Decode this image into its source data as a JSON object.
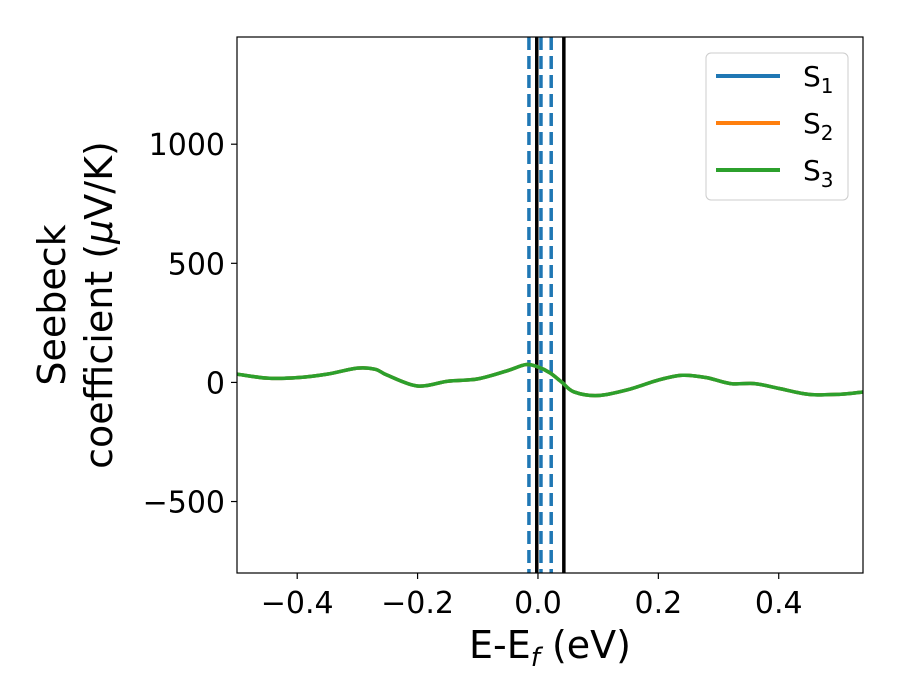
{
  "chart_data": {
    "type": "line",
    "xlabel": "E-E",
    "xlabel_sub": "f",
    "xlabel_unit": " (eV)",
    "ylabel_line1": "Seebeck",
    "ylabel_line2_prefix": "coefficient  (",
    "ylabel_mu": "μ",
    "ylabel_line2_suffix": "V/K)",
    "xlim": [
      -0.5,
      0.54
    ],
    "ylim": [
      -800,
      1450
    ],
    "x_ticks": [
      {
        "value": -0.4,
        "label": "−0.4"
      },
      {
        "value": -0.2,
        "label": "−0.2"
      },
      {
        "value": 0.0,
        "label": "0.0"
      },
      {
        "value": 0.2,
        "label": "0.2"
      },
      {
        "value": 0.4,
        "label": "0.4"
      }
    ],
    "y_ticks": [
      {
        "value": -500,
        "label": "−500"
      },
      {
        "value": 0,
        "label": "0"
      },
      {
        "value": 500,
        "label": "500"
      },
      {
        "value": 1000,
        "label": "1000"
      }
    ],
    "grid": false,
    "legend_position": "top-right",
    "series": [
      {
        "name": "S",
        "sub": "1",
        "color": "#1f77b4",
        "x": [
          -0.5,
          -0.45,
          -0.4,
          -0.35,
          -0.3,
          -0.27,
          -0.25,
          -0.2,
          -0.15,
          -0.1,
          -0.05,
          -0.02,
          0.0,
          0.02,
          0.04,
          0.06,
          0.1,
          0.15,
          0.2,
          0.24,
          0.28,
          0.32,
          0.36,
          0.4,
          0.45,
          0.5,
          0.54
        ],
        "y": [
          35,
          18,
          20,
          35,
          60,
          55,
          30,
          -15,
          5,
          15,
          50,
          75,
          65,
          40,
          0,
          -40,
          -55,
          -30,
          10,
          30,
          20,
          -5,
          -5,
          -25,
          -50,
          -50,
          -40
        ]
      },
      {
        "name": "S",
        "sub": "2",
        "color": "#ff7f0e",
        "x": [
          -0.5,
          -0.45,
          -0.4,
          -0.35,
          -0.3,
          -0.27,
          -0.25,
          -0.2,
          -0.15,
          -0.1,
          -0.05,
          -0.02,
          0.0,
          0.02,
          0.04,
          0.06,
          0.1,
          0.15,
          0.2,
          0.24,
          0.28,
          0.32,
          0.36,
          0.4,
          0.45,
          0.5,
          0.54
        ],
        "y": [
          35,
          18,
          20,
          35,
          60,
          55,
          30,
          -15,
          5,
          15,
          50,
          75,
          65,
          40,
          0,
          -40,
          -55,
          -30,
          10,
          30,
          20,
          -5,
          -5,
          -25,
          -50,
          -50,
          -40
        ]
      },
      {
        "name": "S",
        "sub": "3",
        "color": "#2ca02c",
        "x": [
          -0.5,
          -0.45,
          -0.4,
          -0.35,
          -0.3,
          -0.27,
          -0.25,
          -0.2,
          -0.15,
          -0.1,
          -0.05,
          -0.02,
          0.0,
          0.02,
          0.04,
          0.06,
          0.1,
          0.15,
          0.2,
          0.24,
          0.28,
          0.32,
          0.36,
          0.4,
          0.45,
          0.5,
          0.54
        ],
        "y": [
          35,
          18,
          20,
          35,
          60,
          55,
          30,
          -15,
          5,
          15,
          50,
          75,
          65,
          40,
          0,
          -40,
          -55,
          -30,
          10,
          30,
          20,
          -5,
          -5,
          -25,
          -50,
          -50,
          -40
        ]
      }
    ],
    "vertical_lines": [
      {
        "x": -0.015,
        "color": "#1f77b4",
        "style": "dashed"
      },
      {
        "x": 0.005,
        "color": "#1f77b4",
        "style": "dashed"
      },
      {
        "x": 0.022,
        "color": "#1f77b4",
        "style": "dashed"
      },
      {
        "x": -0.002,
        "color": "#000000",
        "style": "solid"
      },
      {
        "x": 0.043,
        "color": "#000000",
        "style": "solid"
      }
    ]
  }
}
